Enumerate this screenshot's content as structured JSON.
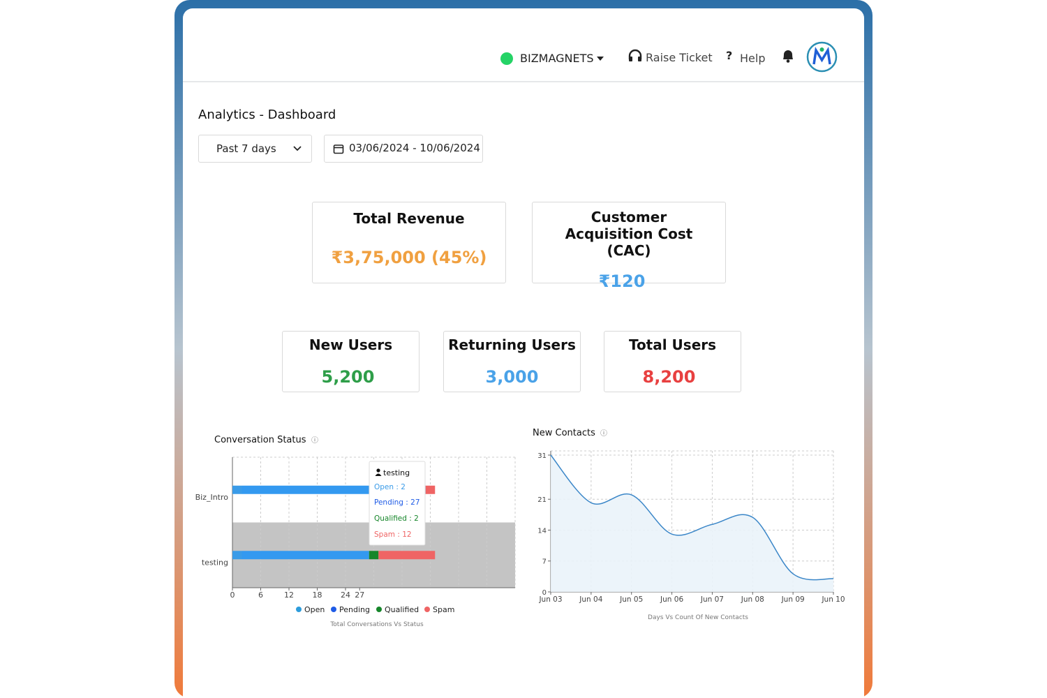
{
  "header": {
    "brand": "BIZMAGNETS",
    "raise_ticket": "Raise Ticket",
    "help_icon": "?",
    "help": "Help"
  },
  "page_title": "Analytics - Dashboard",
  "filters": {
    "period": "Past 7 days",
    "date_range": "03/06/2024 - 10/06/2024"
  },
  "kpis": [
    {
      "label": "Total Revenue",
      "value": "₹3,75,000 (45%)"
    },
    {
      "label": "Customer Acquisition Cost (CAC)",
      "value": "₹120"
    },
    {
      "label": "New Users",
      "value": "5,200"
    },
    {
      "label": "Returning Users",
      "value": "3,000"
    },
    {
      "label": "Total Users",
      "value": "8,200"
    }
  ],
  "chart_data": [
    {
      "type": "hbar_stacked",
      "title": "Conversation Status",
      "subtitle": "Total Conversations Vs Status",
      "categories": [
        "Biz_Intro",
        "testing"
      ],
      "series": [
        {
          "name": "Open",
          "color": "#3a9be8",
          "values": [
            2,
            2
          ]
        },
        {
          "name": "Pending",
          "color": "#3399f0",
          "values": [
            39,
            27
          ]
        },
        {
          "name": "Qualified",
          "color": "#16862a",
          "values": [
            0,
            2
          ]
        },
        {
          "name": "Spam",
          "color": "#ef6464",
          "values": [
            2,
            12
          ]
        }
      ],
      "xlim": [
        0,
        60
      ],
      "xticks": [
        0,
        6,
        12,
        18,
        24,
        27
      ],
      "grid": true,
      "legend": "bottom",
      "tooltip": {
        "title": "testing",
        "lines": [
          "Open : 2",
          "Pending : 27",
          "Qualified : 2",
          "Spam : 12"
        ]
      }
    },
    {
      "type": "area",
      "title": "New Contacts",
      "subtitle": "Days Vs Count Of New Contacts",
      "categories": [
        "Jun 03",
        "Jun 04",
        "Jun 05",
        "Jun 06",
        "Jun 07",
        "Jun 08",
        "Jun 09",
        "Jun 10"
      ],
      "values": [
        31,
        20.2,
        22,
        13.1,
        15.3,
        16.9,
        4.1,
        3
      ],
      "color": "#3a86c8",
      "ylim": [
        0,
        31
      ],
      "yticks": [
        0,
        7,
        14,
        21,
        31
      ],
      "grid": true
    }
  ]
}
